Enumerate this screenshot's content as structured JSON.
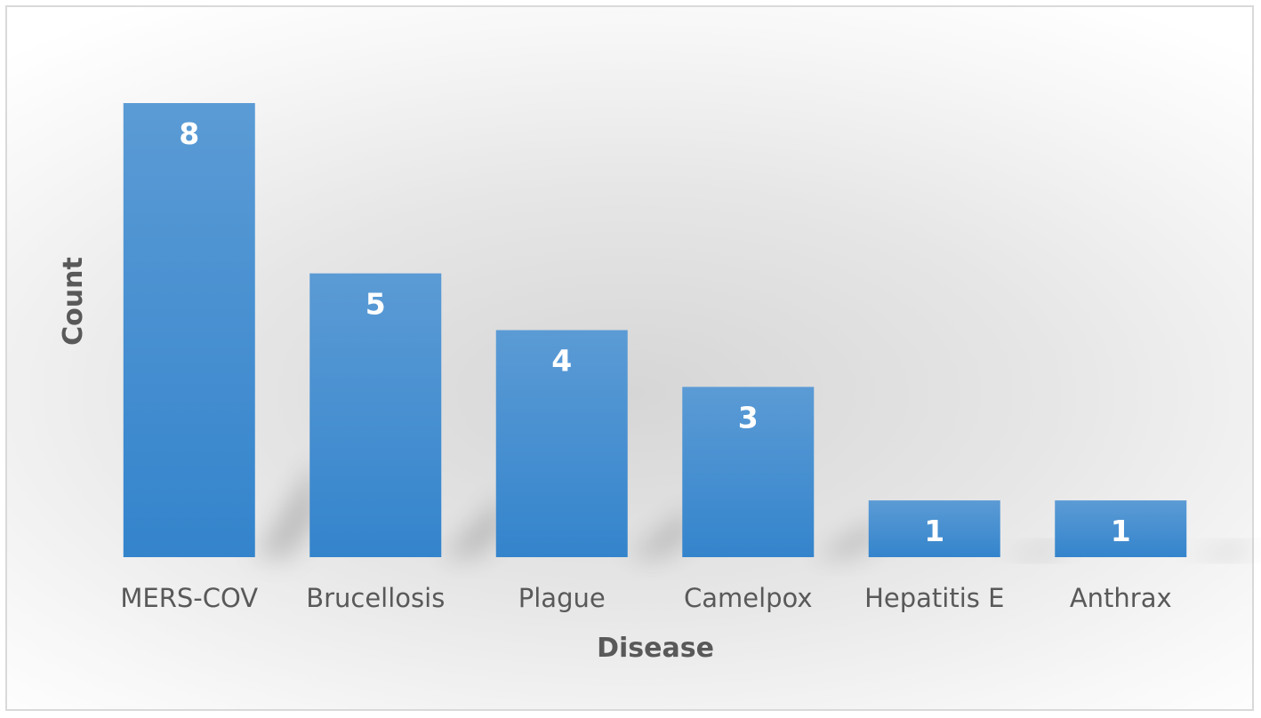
{
  "chart_data": {
    "type": "bar",
    "title": "",
    "xlabel": "Disease",
    "ylabel": "Count",
    "categories": [
      "MERS-COV",
      "Brucellosis",
      "Plague",
      "Camelpox",
      "Hepatitis E",
      "Anthrax"
    ],
    "values": [
      8,
      5,
      4,
      3,
      1,
      1
    ],
    "ylim": [
      0,
      8
    ],
    "grid": false,
    "legend": "none",
    "data_labels": true,
    "bar_color": "#3F8CD2",
    "label_color": "#FFFFFF",
    "text_color": "#595959"
  }
}
